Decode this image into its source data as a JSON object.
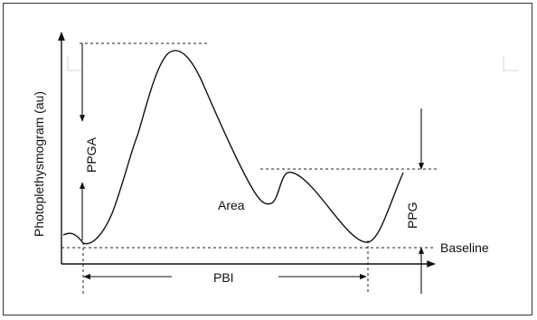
{
  "diagram": {
    "ylabel": "Photoplethysmogram (au)",
    "labels": {
      "ppga": "PPGA",
      "area": "Area",
      "ppg": "PPG",
      "baseline": "Baseline",
      "pbi": "PBI"
    }
  }
}
